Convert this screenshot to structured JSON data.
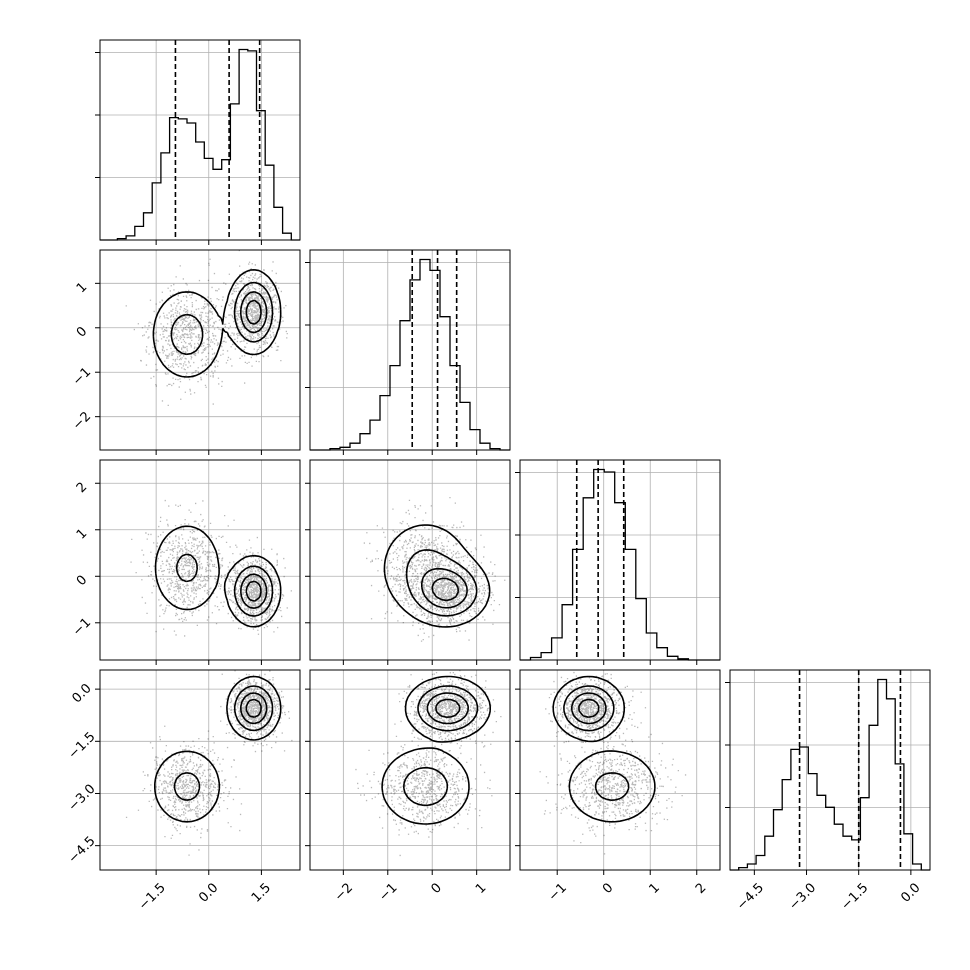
{
  "chart_data": {
    "type": "corner",
    "grid": true,
    "shade_color": "#000000",
    "quantiles": [
      0.16,
      0.5,
      0.84
    ],
    "parameters": [
      {
        "range": [
          -3.1,
          2.6
        ],
        "ticks": [
          -1.5,
          0.0,
          1.5
        ],
        "tick_labels": [
          "−1.5",
          "0.0",
          "1.5"
        ],
        "quantile_values": [
          -0.95,
          0.58,
          1.45
        ],
        "hist": {
          "edges_range": [
            -3.1,
            2.6
          ],
          "counts": [
            0,
            0,
            1,
            3,
            10,
            20,
            42,
            64,
            90,
            89,
            86,
            72,
            60,
            52,
            59,
            100,
            140,
            139,
            95,
            55,
            24,
            5,
            0
          ]
        }
      },
      {
        "range": [
          -2.75,
          1.75
        ],
        "ticks": [
          -2,
          -1,
          0,
          1
        ],
        "tick_labels": [
          "−2",
          "−1",
          "0",
          "1"
        ],
        "quantile_values": [
          -0.45,
          0.12,
          0.55
        ],
        "hist": {
          "edges_range": [
            -2.75,
            1.75
          ],
          "counts": [
            0,
            0,
            1,
            2,
            5,
            12,
            22,
            40,
            62,
            95,
            125,
            140,
            132,
            98,
            62,
            35,
            15,
            5,
            1,
            0
          ]
        }
      },
      {
        "range": [
          -1.8,
          2.5
        ],
        "ticks": [
          -1,
          0,
          1,
          2
        ],
        "tick_labels": [
          "−1",
          "0",
          "1",
          "2"
        ],
        "quantile_values": [
          -0.58,
          -0.12,
          0.43
        ],
        "hist": {
          "edges_range": [
            -1.8,
            2.5
          ],
          "counts": [
            0,
            2,
            6,
            18,
            45,
            90,
            132,
            155,
            153,
            128,
            90,
            50,
            22,
            10,
            3,
            1,
            0,
            0,
            0
          ]
        }
      },
      {
        "range": [
          -5.2,
          0.55
        ],
        "ticks": [
          -4.5,
          -3.0,
          -1.5,
          0.0
        ],
        "tick_labels": [
          "−4.5",
          "−3.0",
          "−1.5",
          "0.0"
        ],
        "quantile_values": [
          -3.2,
          -1.5,
          -0.3
        ],
        "hist": {
          "edges_range": [
            -5.2,
            0.55
          ],
          "counts": [
            0,
            2,
            5,
            12,
            28,
            50,
            75,
            100,
            102,
            80,
            62,
            52,
            38,
            28,
            25,
            60,
            120,
            158,
            142,
            88,
            30,
            5,
            0
          ]
        }
      }
    ],
    "density_components": [
      {
        "weight": 0.58,
        "mean": [
          1.28,
          0.35,
          -0.32,
          -0.55
        ],
        "sd": [
          0.32,
          0.4,
          0.32,
          0.38
        ]
      },
      {
        "weight": 0.42,
        "mean": [
          -0.62,
          -0.15,
          0.18,
          -2.8
        ],
        "sd": [
          0.5,
          0.5,
          0.5,
          0.55
        ]
      }
    ]
  }
}
